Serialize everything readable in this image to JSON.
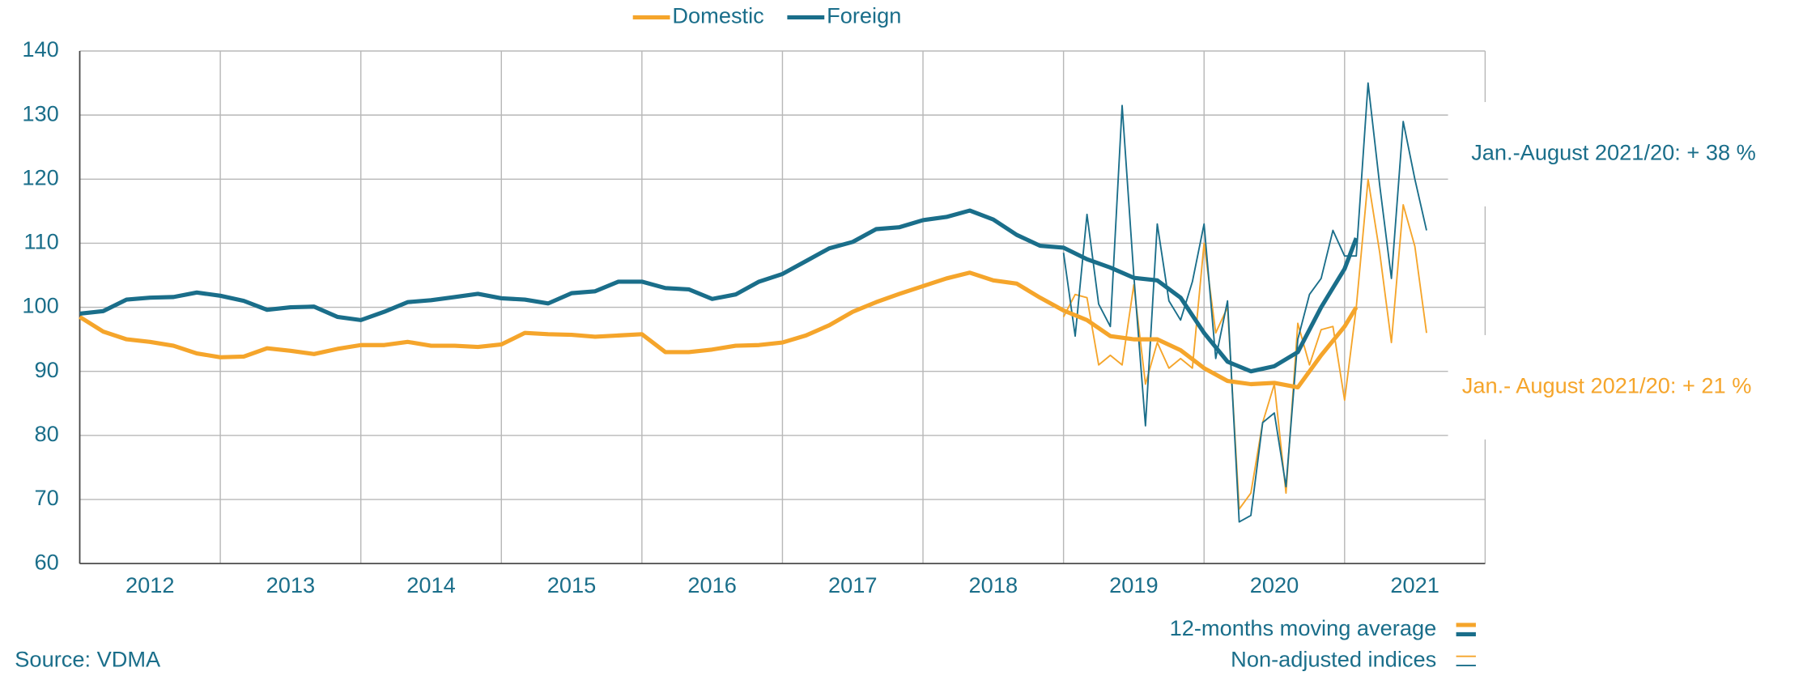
{
  "chart_data": {
    "type": "line",
    "source": "Source: VDMA",
    "xlim": [
      2012,
      2022
    ],
    "xticks": [
      2012,
      2013,
      2014,
      2015,
      2016,
      2017,
      2018,
      2019,
      2020,
      2021
    ],
    "ylim": [
      60,
      140
    ],
    "yticks": [
      60,
      70,
      80,
      90,
      100,
      110,
      120,
      130,
      140
    ],
    "grid": true,
    "legend": "top",
    "series": [
      {
        "name": "Domestic",
        "color": "#f5a52b",
        "style": "thick",
        "x": [
          2012,
          2012.167,
          2012.333,
          2012.5,
          2012.667,
          2012.833,
          2013,
          2013.167,
          2013.333,
          2013.5,
          2013.667,
          2013.833,
          2014,
          2014.167,
          2014.333,
          2014.5,
          2014.667,
          2014.833,
          2015,
          2015.167,
          2015.333,
          2015.5,
          2015.667,
          2015.833,
          2016,
          2016.167,
          2016.333,
          2016.5,
          2016.667,
          2016.833,
          2017,
          2017.167,
          2017.333,
          2017.5,
          2017.667,
          2017.833,
          2018,
          2018.167,
          2018.333,
          2018.5,
          2018.667,
          2018.833,
          2019,
          2019.167,
          2019.333,
          2019.5,
          2019.667,
          2019.833,
          2020,
          2020.167,
          2020.333,
          2020.5,
          2020.667,
          2020.833,
          2021,
          2021.083
        ],
        "values": [
          98.5,
          96.2,
          95,
          94.6,
          94,
          92.8,
          92.2,
          92.3,
          93.6,
          93.2,
          92.7,
          93.5,
          94.1,
          94.1,
          94.6,
          94,
          94,
          93.8,
          94.2,
          96,
          95.8,
          95.7,
          95.4,
          95.6,
          95.8,
          93,
          93,
          93.4,
          94,
          94.1,
          94.5,
          95.6,
          97.2,
          99.3,
          100.8,
          102.1,
          103.3,
          104.5,
          105.4,
          104.2,
          103.7,
          101.5,
          99.5,
          98,
          95.5,
          95,
          95,
          93.3,
          90.5,
          88.5,
          88,
          88.2,
          87.5,
          92.5,
          97,
          100
        ]
      },
      {
        "name": "Foreign",
        "color": "#1a6e8a",
        "style": "thick",
        "x": [
          2012,
          2012.167,
          2012.333,
          2012.5,
          2012.667,
          2012.833,
          2013,
          2013.167,
          2013.333,
          2013.5,
          2013.667,
          2013.833,
          2014,
          2014.167,
          2014.333,
          2014.5,
          2014.667,
          2014.833,
          2015,
          2015.167,
          2015.333,
          2015.5,
          2015.667,
          2015.833,
          2016,
          2016.167,
          2016.333,
          2016.5,
          2016.667,
          2016.833,
          2017,
          2017.167,
          2017.333,
          2017.5,
          2017.667,
          2017.833,
          2018,
          2018.167,
          2018.333,
          2018.5,
          2018.667,
          2018.833,
          2019,
          2019.167,
          2019.333,
          2019.5,
          2019.667,
          2019.833,
          2020,
          2020.167,
          2020.333,
          2020.5,
          2020.667,
          2020.833,
          2021,
          2021.083
        ],
        "values": [
          99,
          99.4,
          101.2,
          101.5,
          101.6,
          102.3,
          101.8,
          101,
          99.6,
          100,
          100.1,
          98.5,
          98,
          99.3,
          100.8,
          101.1,
          101.6,
          102.1,
          101.4,
          101.2,
          100.6,
          102.2,
          102.5,
          104,
          104,
          103,
          102.8,
          101.3,
          102,
          104,
          105.2,
          107.2,
          109.2,
          110.2,
          112.2,
          112.5,
          113.6,
          114.1,
          115.1,
          113.7,
          111.3,
          109.6,
          109.3,
          107.5,
          106.2,
          104.6,
          104.2,
          101.5,
          96,
          91.5,
          90,
          90.8,
          93,
          100,
          106,
          110.8
        ]
      },
      {
        "color": "#f5a52b",
        "style": "thin",
        "x": [
          2019,
          2019.083,
          2019.167,
          2019.25,
          2019.333,
          2019.417,
          2019.5,
          2019.583,
          2019.667,
          2019.75,
          2019.833,
          2019.917,
          2020,
          2020.083,
          2020.167,
          2020.25,
          2020.333,
          2020.417,
          2020.5,
          2020.583,
          2020.667,
          2020.75,
          2020.833,
          2020.917,
          2021,
          2021.083,
          2021.167,
          2021.25,
          2021.333,
          2021.417,
          2021.5,
          2021.583
        ],
        "values": [
          98.5,
          102,
          101.5,
          91,
          92.5,
          91,
          103.5,
          88,
          94.5,
          90.5,
          92,
          90.5,
          110,
          96,
          100,
          68.5,
          71,
          82,
          88,
          71,
          97.5,
          91,
          96.5,
          97,
          85.5,
          100,
          120,
          108.5,
          94.5,
          116,
          109.5,
          96
        ]
      },
      {
        "color": "#1a6e8a",
        "style": "thin",
        "x": [
          2019,
          2019.083,
          2019.167,
          2019.25,
          2019.333,
          2019.417,
          2019.5,
          2019.583,
          2019.667,
          2019.75,
          2019.833,
          2019.917,
          2020,
          2020.083,
          2020.167,
          2020.25,
          2020.333,
          2020.417,
          2020.5,
          2020.583,
          2020.667,
          2020.75,
          2020.833,
          2020.917,
          2021,
          2021.083,
          2021.167,
          2021.25,
          2021.333,
          2021.417,
          2021.5,
          2021.583
        ],
        "values": [
          108.5,
          95.5,
          114.5,
          100.5,
          97,
          131.5,
          105,
          81.5,
          113,
          101,
          98,
          104,
          113,
          92,
          101,
          66.5,
          67.5,
          82,
          83.5,
          72,
          95,
          102,
          104.5,
          112,
          108,
          108,
          135,
          119,
          104.5,
          129,
          120,
          112
        ]
      }
    ],
    "style_legend": [
      {
        "label": "12-months moving average",
        "style": "thick"
      },
      {
        "label": "Non-adjusted indices",
        "style": "thin"
      }
    ],
    "annotations": [
      {
        "text": "Jan.-August 2021/20: + 38 %",
        "color": "#1a6e8a"
      },
      {
        "text": "Jan.- August 2021/20: + 21 %",
        "color": "#f5a52b"
      }
    ]
  }
}
